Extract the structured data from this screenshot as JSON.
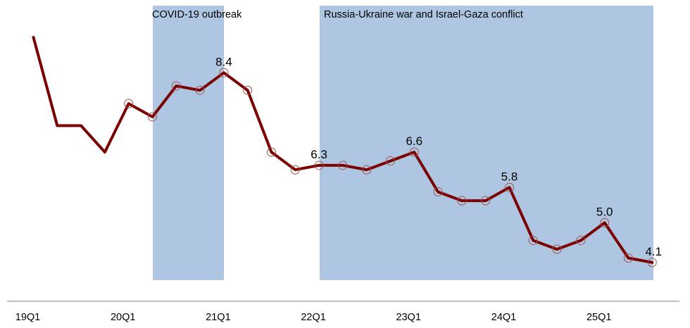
{
  "chart_data": {
    "type": "line",
    "title": "",
    "xlabel": "",
    "ylabel": "",
    "ylim": [
      3.7,
      9.6
    ],
    "categories": [
      "19Q1",
      "19Q2",
      "19Q3",
      "19Q4",
      "20Q1",
      "20Q2",
      "20Q3",
      "20Q4",
      "21Q1",
      "21Q2",
      "21Q3",
      "21Q4",
      "22Q1",
      "22Q2",
      "22Q3",
      "22Q4",
      "23Q1",
      "23Q2",
      "23Q3",
      "23Q4",
      "24Q1",
      "24Q2",
      "24Q3",
      "24Q4",
      "25Q1",
      "25Q2",
      "25Q3"
    ],
    "tick_labels": [
      "19Q1",
      "20Q1",
      "21Q1",
      "22Q1",
      "23Q1",
      "24Q1",
      "25Q1"
    ],
    "series": [
      {
        "name": "series",
        "color": "#7b0000",
        "values": [
          9.2,
          7.2,
          7.2,
          6.6,
          7.7,
          7.4,
          8.1,
          8.0,
          8.4,
          8.0,
          6.6,
          6.2,
          6.3,
          6.3,
          6.2,
          6.4,
          6.6,
          5.7,
          5.5,
          5.5,
          5.8,
          4.6,
          4.4,
          4.6,
          5.0,
          4.2,
          4.1
        ],
        "marker_start_index": 4
      }
    ],
    "data_labels": [
      {
        "index": 8,
        "text": "8.4"
      },
      {
        "index": 12,
        "text": "6.3"
      },
      {
        "index": 16,
        "text": "6.6"
      },
      {
        "index": 20,
        "text": "5.8"
      },
      {
        "index": 24,
        "text": "5.0"
      },
      {
        "index": 26,
        "text": "4.1"
      }
    ],
    "shaded_regions": [
      {
        "label": "COVID-19 outbreak",
        "start_index": 5,
        "end_index": 8,
        "color": "#aec6e1"
      },
      {
        "label": "Russia-Ukraine war and Israel-Gaza conflict",
        "start_index": 12,
        "end_index": 26,
        "color": "#aec6e1"
      }
    ],
    "grid": false,
    "legend": "none"
  }
}
